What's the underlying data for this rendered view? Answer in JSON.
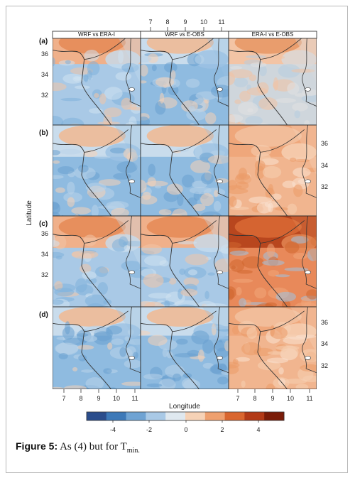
{
  "figure": {
    "column_headers": [
      "WRF vs ERA-I",
      "WRF vs E-OBS",
      "ERA-I vs E-OBS"
    ],
    "panel_labels": [
      "(a)",
      "(b)",
      "(c)",
      "(d)"
    ],
    "x_axis_title": "Longitude",
    "y_axis_title": "Latitude",
    "lon_ticks": [
      "7",
      "8",
      "9",
      "10",
      "11"
    ],
    "lat_ticks": [
      "36",
      "34",
      "32"
    ],
    "colorbar_ticks": [
      "-4",
      "-2",
      "0",
      "2",
      "4"
    ],
    "colorbar_colors": [
      "#2b4d8c",
      "#3d79b8",
      "#6fa3d3",
      "#a9c9e6",
      "#dfe8ef",
      "#f6d2b6",
      "#eea06f",
      "#d9662f",
      "#b23a17",
      "#7a1c08"
    ],
    "panel_tint": [
      [
        "warm-north",
        "mixed-blue",
        "grey-mixed"
      ],
      [
        "mixed-blue",
        "mixed-blue",
        "warm-light"
      ],
      [
        "warm-north",
        "warm-north",
        "warm-strong"
      ],
      [
        "mixed-blue",
        "mixed-blue",
        "warm-light"
      ]
    ]
  },
  "caption": {
    "label": "Figure 5:",
    "text": "As (4) but for T",
    "subscript": "min."
  }
}
